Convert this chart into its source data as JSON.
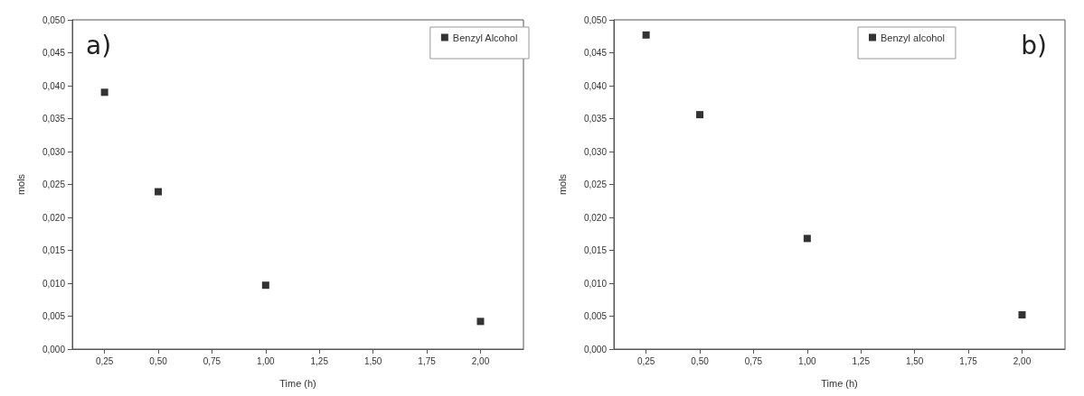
{
  "chart_data": [
    {
      "type": "scatter",
      "xlabel": "Time (h)",
      "ylabel": "mols",
      "annotations": [
        "a)"
      ],
      "x": [
        0.25,
        0.5,
        1.0,
        2.0
      ],
      "series": [
        {
          "name": "Benzyl Alcohol",
          "color": "#000000",
          "values": [
            0.039,
            0.0239,
            0.0097,
            0.0042
          ]
        }
      ],
      "xlim": [
        0.1,
        2.2
      ],
      "xticks": [
        {
          "value": 0.25,
          "label": "0,25"
        },
        {
          "value": 0.5,
          "label": "0,50"
        },
        {
          "value": 0.75,
          "label": "0,75"
        },
        {
          "value": 1.0,
          "label": "1,00"
        },
        {
          "value": 1.25,
          "label": "1,25"
        },
        {
          "value": 1.5,
          "label": "1,50"
        },
        {
          "value": 1.75,
          "label": "1,75"
        },
        {
          "value": 2.0,
          "label": "2,00"
        }
      ],
      "ylim": [
        0,
        0.05
      ],
      "yticks": [
        {
          "value": 0,
          "label": "0,000"
        },
        {
          "value": 0.005,
          "label": "0,005"
        },
        {
          "value": 0.01,
          "label": "0,010"
        },
        {
          "value": 0.015,
          "label": "0,015"
        },
        {
          "value": 0.02,
          "label": "0,020"
        },
        {
          "value": 0.025,
          "label": "0,025"
        },
        {
          "value": 0.03,
          "label": "0,030"
        },
        {
          "value": 0.035,
          "label": "0,035"
        },
        {
          "value": 0.04,
          "label": "0,040"
        },
        {
          "value": 0.045,
          "label": "0,045"
        },
        {
          "value": 0.05,
          "label": "0,050"
        }
      ],
      "grid": false,
      "legend": "top right",
      "marker": "square"
    },
    {
      "type": "scatter",
      "xlabel": "Time (h)",
      "ylabel": "mols",
      "annotations": [
        "b)"
      ],
      "x": [
        0.25,
        0.5,
        1.0,
        2.0
      ],
      "series": [
        {
          "name": "Benzyl alcohol",
          "color": "#000000",
          "values": [
            0.0477,
            0.0356,
            0.0168,
            0.0052
          ]
        }
      ],
      "xlim": [
        0.1,
        2.2
      ],
      "xticks": [
        {
          "value": 0.25,
          "label": "0,25"
        },
        {
          "value": 0.5,
          "label": "0,50"
        },
        {
          "value": 0.75,
          "label": "0,75"
        },
        {
          "value": 1.0,
          "label": "1,00"
        },
        {
          "value": 1.25,
          "label": "1,25"
        },
        {
          "value": 1.5,
          "label": "1,50"
        },
        {
          "value": 1.75,
          "label": "1,75"
        },
        {
          "value": 2.0,
          "label": "2,00"
        }
      ],
      "ylim": [
        0,
        0.05
      ],
      "yticks": [
        {
          "value": 0,
          "label": "0,000"
        },
        {
          "value": 0.005,
          "label": "0,005"
        },
        {
          "value": 0.01,
          "label": "0,010"
        },
        {
          "value": 0.015,
          "label": "0,015"
        },
        {
          "value": 0.02,
          "label": "0,020"
        },
        {
          "value": 0.025,
          "label": "0,025"
        },
        {
          "value": 0.03,
          "label": "0,030"
        },
        {
          "value": 0.035,
          "label": "0,035"
        },
        {
          "value": 0.04,
          "label": "0,040"
        },
        {
          "value": 0.045,
          "label": "0,045"
        },
        {
          "value": 0.05,
          "label": "0,050"
        }
      ],
      "grid": false,
      "legend": "top",
      "marker": "square"
    }
  ]
}
